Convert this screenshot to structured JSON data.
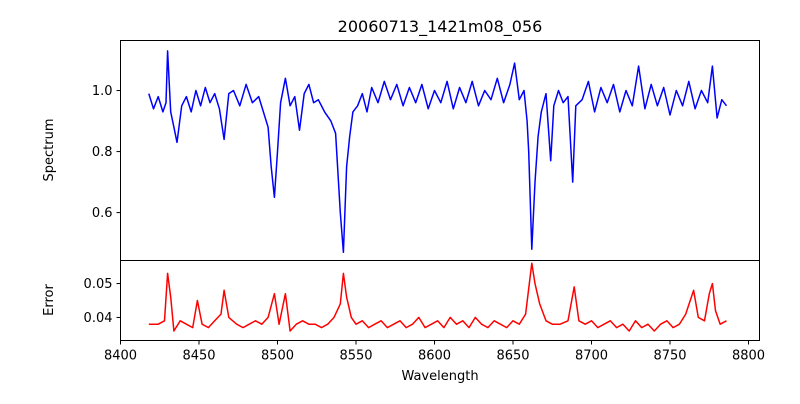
{
  "chart_data": [
    {
      "type": "line",
      "title": "20060713_1421m08_056",
      "xlabel": "",
      "ylabel": "Spectrum",
      "xlim": [
        8400,
        8807
      ],
      "ylim": [
        0.443,
        1.164
      ],
      "yticks": [
        0.6,
        0.8,
        1.0
      ],
      "ytick_labels": [
        "0.6",
        "0.8",
        "1.0"
      ],
      "color": "#0000ff",
      "x": [
        8418,
        8421,
        8424,
        8427,
        8429,
        8430,
        8432,
        8434,
        8436,
        8439,
        8442,
        8445,
        8448,
        8451,
        8454,
        8457,
        8460,
        8463,
        8466,
        8469,
        8472,
        8476,
        8480,
        8484,
        8488,
        8491,
        8494,
        8496,
        8498,
        8500,
        8502,
        8505,
        8508,
        8511,
        8514,
        8517,
        8520,
        8523,
        8526,
        8530,
        8534,
        8537,
        8540,
        8542,
        8544,
        8546,
        8548,
        8551,
        8554,
        8557,
        8560,
        8564,
        8568,
        8572,
        8576,
        8580,
        8584,
        8588,
        8592,
        8596,
        8600,
        8604,
        8608,
        8612,
        8616,
        8620,
        8624,
        8628,
        8632,
        8636,
        8640,
        8644,
        8648,
        8651,
        8654,
        8657,
        8659,
        8660,
        8662,
        8664,
        8666,
        8668,
        8671,
        8674,
        8676,
        8679,
        8682,
        8685,
        8688,
        8690,
        8694,
        8698,
        8702,
        8706,
        8710,
        8714,
        8718,
        8722,
        8726,
        8730,
        8734,
        8738,
        8742,
        8746,
        8750,
        8754,
        8758,
        8762,
        8766,
        8770,
        8774,
        8777,
        8780,
        8783,
        8786
      ],
      "y": [
        0.99,
        0.94,
        0.98,
        0.93,
        0.96,
        1.13,
        0.93,
        0.88,
        0.83,
        0.95,
        0.98,
        0.93,
        1.0,
        0.95,
        1.01,
        0.96,
        0.99,
        0.94,
        0.84,
        0.99,
        1.0,
        0.95,
        1.02,
        0.96,
        0.98,
        0.93,
        0.88,
        0.75,
        0.65,
        0.8,
        0.96,
        1.04,
        0.95,
        0.98,
        0.87,
        0.99,
        1.02,
        0.96,
        0.97,
        0.93,
        0.9,
        0.86,
        0.6,
        0.47,
        0.75,
        0.85,
        0.93,
        0.95,
        0.99,
        0.93,
        1.01,
        0.96,
        1.03,
        0.97,
        1.02,
        0.95,
        1.01,
        0.96,
        1.02,
        0.94,
        1.0,
        0.96,
        1.03,
        0.94,
        1.01,
        0.96,
        1.03,
        0.95,
        1.0,
        0.97,
        1.04,
        0.96,
        1.02,
        1.09,
        0.97,
        1.0,
        0.9,
        0.8,
        0.48,
        0.7,
        0.85,
        0.93,
        0.99,
        0.77,
        0.95,
        1.0,
        0.96,
        0.98,
        0.7,
        0.95,
        0.97,
        1.03,
        0.93,
        1.01,
        0.96,
        1.02,
        0.93,
        1.0,
        0.95,
        1.08,
        0.94,
        1.02,
        0.95,
        1.01,
        0.92,
        1.0,
        0.95,
        1.03,
        0.94,
        1.0,
        0.96,
        1.08,
        0.91,
        0.97,
        0.95
      ]
    },
    {
      "type": "line",
      "xlabel": "Wavelength",
      "ylabel": "Error",
      "xlim": [
        8400,
        8807
      ],
      "ylim": [
        0.0332,
        0.0568
      ],
      "xticks": [
        8400,
        8450,
        8500,
        8550,
        8600,
        8650,
        8700,
        8750,
        8800
      ],
      "xtick_labels": [
        "8400",
        "8450",
        "8500",
        "8550",
        "8600",
        "8650",
        "8700",
        "8750",
        "8800"
      ],
      "yticks": [
        0.04,
        0.05
      ],
      "ytick_labels": [
        "0.04",
        "0.05"
      ],
      "color": "#ff0000",
      "x": [
        8418,
        8424,
        8428,
        8430,
        8432,
        8434,
        8438,
        8442,
        8446,
        8449,
        8452,
        8456,
        8460,
        8464,
        8466,
        8469,
        8474,
        8478,
        8482,
        8486,
        8490,
        8494,
        8498,
        8501,
        8505,
        8508,
        8512,
        8516,
        8520,
        8524,
        8528,
        8532,
        8536,
        8540,
        8542,
        8544,
        8547,
        8550,
        8554,
        8558,
        8562,
        8566,
        8570,
        8574,
        8578,
        8582,
        8586,
        8590,
        8594,
        8598,
        8602,
        8606,
        8610,
        8614,
        8618,
        8622,
        8626,
        8630,
        8634,
        8638,
        8642,
        8646,
        8650,
        8654,
        8658,
        8662,
        8664,
        8667,
        8671,
        8675,
        8680,
        8685,
        8689,
        8692,
        8696,
        8700,
        8704,
        8708,
        8712,
        8716,
        8720,
        8724,
        8728,
        8732,
        8736,
        8740,
        8744,
        8748,
        8752,
        8756,
        8760,
        8765,
        8768,
        8772,
        8775,
        8777,
        8779,
        8782,
        8786
      ],
      "y": [
        0.038,
        0.038,
        0.039,
        0.053,
        0.046,
        0.036,
        0.039,
        0.038,
        0.037,
        0.045,
        0.038,
        0.037,
        0.039,
        0.041,
        0.048,
        0.04,
        0.038,
        0.037,
        0.038,
        0.039,
        0.038,
        0.04,
        0.047,
        0.038,
        0.047,
        0.036,
        0.038,
        0.039,
        0.038,
        0.038,
        0.037,
        0.038,
        0.04,
        0.044,
        0.053,
        0.046,
        0.04,
        0.038,
        0.039,
        0.037,
        0.038,
        0.039,
        0.037,
        0.038,
        0.039,
        0.037,
        0.038,
        0.04,
        0.037,
        0.038,
        0.039,
        0.037,
        0.04,
        0.038,
        0.039,
        0.037,
        0.04,
        0.038,
        0.037,
        0.039,
        0.038,
        0.037,
        0.039,
        0.038,
        0.041,
        0.056,
        0.05,
        0.044,
        0.039,
        0.038,
        0.038,
        0.039,
        0.049,
        0.039,
        0.038,
        0.039,
        0.037,
        0.038,
        0.039,
        0.037,
        0.038,
        0.036,
        0.039,
        0.037,
        0.038,
        0.036,
        0.038,
        0.039,
        0.037,
        0.038,
        0.041,
        0.048,
        0.04,
        0.039,
        0.047,
        0.05,
        0.042,
        0.038,
        0.039
      ]
    }
  ]
}
